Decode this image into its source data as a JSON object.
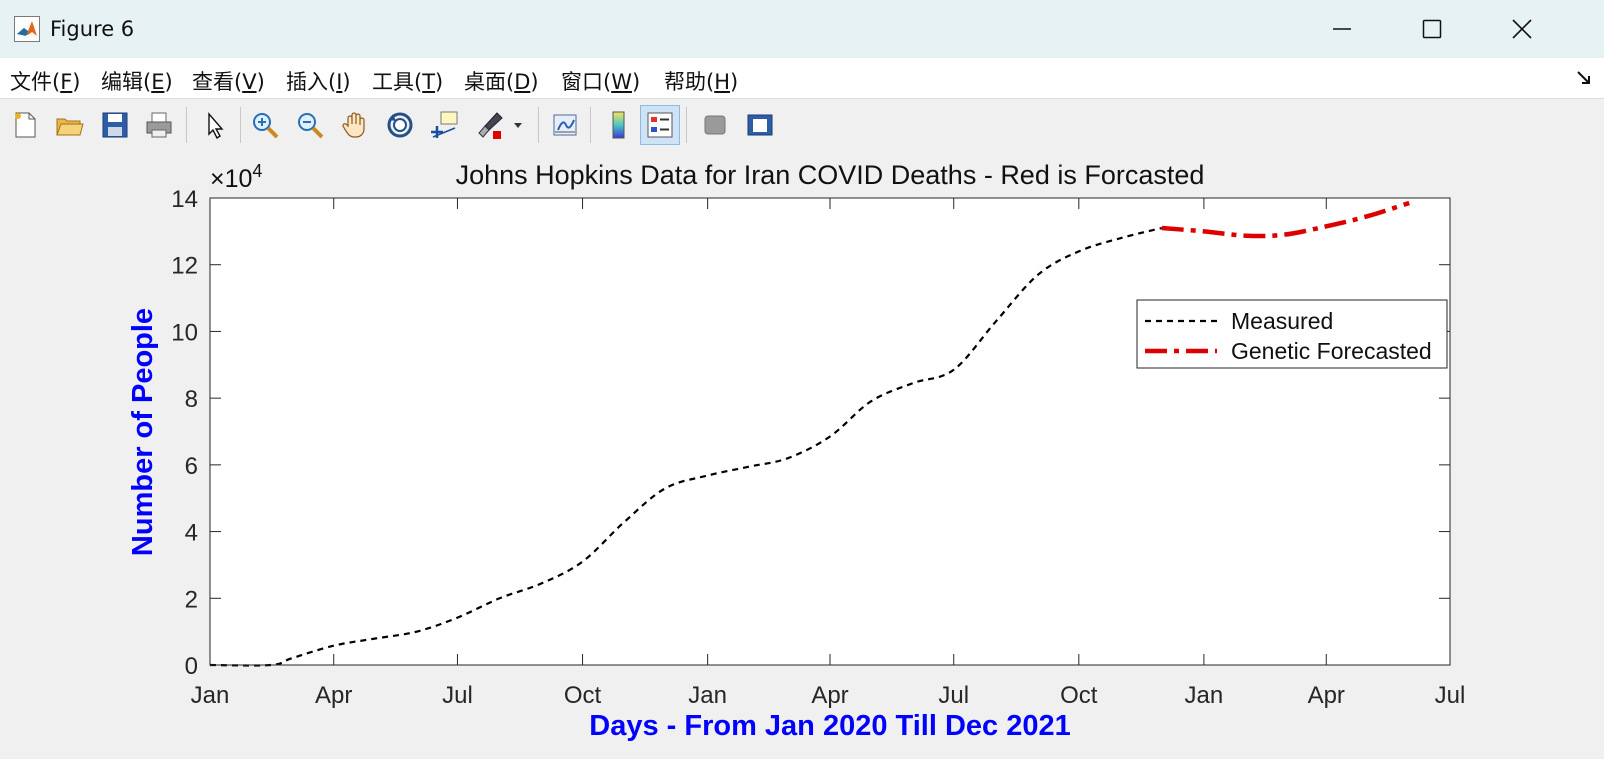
{
  "window": {
    "title": "Figure 6",
    "icons": {
      "app": "matlab-logo-icon",
      "minimize": "minimize-icon",
      "maximize": "maximize-icon",
      "close": "close-icon"
    }
  },
  "menu": [
    {
      "text": "文件(",
      "key": "F",
      "end": ")"
    },
    {
      "text": "编辑(",
      "key": "E",
      "end": ")"
    },
    {
      "text": "查看(",
      "key": "V",
      "end": ")"
    },
    {
      "text": "插入(",
      "key": "I",
      "end": ")"
    },
    {
      "text": "工具(",
      "key": "T",
      "end": ")"
    },
    {
      "text": "桌面(",
      "key": "D",
      "end": ")"
    },
    {
      "text": "窗口(",
      "key": "W",
      "end": ")"
    },
    {
      "text": "帮助(",
      "key": "H",
      "end": ")"
    }
  ],
  "toolbar": [
    "new-figure-icon",
    "open-folder-icon",
    "save-icon",
    "print-icon",
    "select-arrow-icon",
    "zoom-in-icon",
    "zoom-out-icon",
    "pan-hand-icon",
    "rotate-3d-icon",
    "data-cursor-icon",
    "brush-icon",
    "link-plot-icon",
    "colorbar-icon",
    "legend-icon",
    "hide-plot-tools-icon",
    "show-plot-tools-icon"
  ],
  "chart_data": {
    "type": "line",
    "title": "Johns Hopkins Data for Iran COVID Deaths - Red is Forcasted",
    "xlabel": "Days - From Jan 2020 Till Dec 2021",
    "ylabel": "Number of People",
    "y_exponent_label": "×10",
    "y_exponent_power": "4",
    "x_ticks": [
      "Jan",
      "Apr",
      "Jul",
      "Oct",
      "Jan",
      "Apr",
      "Jul",
      "Oct",
      "Jan",
      "Apr",
      "Jul"
    ],
    "x_tick_dates": [
      "2020-01-01",
      "2020-04-01",
      "2020-07-01",
      "2020-10-01",
      "2021-01-01",
      "2021-04-01",
      "2021-07-01",
      "2021-10-01",
      "2022-01-01",
      "2022-04-01",
      "2022-07-01"
    ],
    "y_ticks": [
      "0",
      "2",
      "4",
      "6",
      "8",
      "10",
      "12",
      "14"
    ],
    "xlim": [
      "2020-01-01",
      "2022-07-01"
    ],
    "ylim": [
      0,
      140000
    ],
    "grid": false,
    "legend_position": "top-right",
    "axes_label_color": "#0000ff",
    "series": [
      {
        "name": "Measured",
        "color": "#000000",
        "style": "dashed",
        "x": [
          "2020-01-01",
          "2020-02-15",
          "2020-03-01",
          "2020-04-01",
          "2020-05-01",
          "2020-06-01",
          "2020-07-01",
          "2020-08-01",
          "2020-09-01",
          "2020-10-01",
          "2020-11-01",
          "2020-12-01",
          "2021-01-01",
          "2021-02-01",
          "2021-03-01",
          "2021-04-01",
          "2021-05-01",
          "2021-06-01",
          "2021-07-01",
          "2021-08-01",
          "2021-09-01",
          "2021-10-01",
          "2021-11-01",
          "2021-12-01"
        ],
        "y": [
          0,
          0,
          2000,
          5800,
          7900,
          10000,
          14200,
          20000,
          24500,
          31000,
          43000,
          53000,
          56800,
          59500,
          62000,
          68500,
          79000,
          84500,
          88500,
          103000,
          117000,
          124000,
          128000,
          131000
        ]
      },
      {
        "name": "Genetic Forecasted",
        "color": "#dd0000",
        "style": "dashdot",
        "x": [
          "2021-12-01",
          "2022-01-01",
          "2022-02-01",
          "2022-03-01",
          "2022-04-01",
          "2022-05-01",
          "2022-06-01"
        ],
        "y": [
          131000,
          130000,
          128700,
          129000,
          131500,
          134500,
          138500
        ]
      }
    ]
  }
}
